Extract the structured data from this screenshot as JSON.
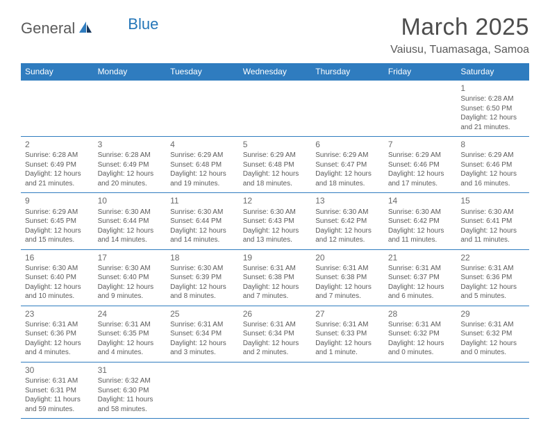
{
  "brand": {
    "text1": "General",
    "text2": "Blue"
  },
  "title": "March 2025",
  "location": "Vaiusu, Tuamasaga, Samoa",
  "colors": {
    "header_bg": "#2f7cbf",
    "header_text": "#ffffff",
    "border": "#2f7cbf",
    "body_text": "#5a5a5a",
    "brand_blue": "#2476b8"
  },
  "weekdays": [
    "Sunday",
    "Monday",
    "Tuesday",
    "Wednesday",
    "Thursday",
    "Friday",
    "Saturday"
  ],
  "weeks": [
    [
      null,
      null,
      null,
      null,
      null,
      null,
      {
        "n": "1",
        "sr": "Sunrise: 6:28 AM",
        "ss": "Sunset: 6:50 PM",
        "d1": "Daylight: 12 hours",
        "d2": "and 21 minutes."
      }
    ],
    [
      {
        "n": "2",
        "sr": "Sunrise: 6:28 AM",
        "ss": "Sunset: 6:49 PM",
        "d1": "Daylight: 12 hours",
        "d2": "and 21 minutes."
      },
      {
        "n": "3",
        "sr": "Sunrise: 6:28 AM",
        "ss": "Sunset: 6:49 PM",
        "d1": "Daylight: 12 hours",
        "d2": "and 20 minutes."
      },
      {
        "n": "4",
        "sr": "Sunrise: 6:29 AM",
        "ss": "Sunset: 6:48 PM",
        "d1": "Daylight: 12 hours",
        "d2": "and 19 minutes."
      },
      {
        "n": "5",
        "sr": "Sunrise: 6:29 AM",
        "ss": "Sunset: 6:48 PM",
        "d1": "Daylight: 12 hours",
        "d2": "and 18 minutes."
      },
      {
        "n": "6",
        "sr": "Sunrise: 6:29 AM",
        "ss": "Sunset: 6:47 PM",
        "d1": "Daylight: 12 hours",
        "d2": "and 18 minutes."
      },
      {
        "n": "7",
        "sr": "Sunrise: 6:29 AM",
        "ss": "Sunset: 6:46 PM",
        "d1": "Daylight: 12 hours",
        "d2": "and 17 minutes."
      },
      {
        "n": "8",
        "sr": "Sunrise: 6:29 AM",
        "ss": "Sunset: 6:46 PM",
        "d1": "Daylight: 12 hours",
        "d2": "and 16 minutes."
      }
    ],
    [
      {
        "n": "9",
        "sr": "Sunrise: 6:29 AM",
        "ss": "Sunset: 6:45 PM",
        "d1": "Daylight: 12 hours",
        "d2": "and 15 minutes."
      },
      {
        "n": "10",
        "sr": "Sunrise: 6:30 AM",
        "ss": "Sunset: 6:44 PM",
        "d1": "Daylight: 12 hours",
        "d2": "and 14 minutes."
      },
      {
        "n": "11",
        "sr": "Sunrise: 6:30 AM",
        "ss": "Sunset: 6:44 PM",
        "d1": "Daylight: 12 hours",
        "d2": "and 14 minutes."
      },
      {
        "n": "12",
        "sr": "Sunrise: 6:30 AM",
        "ss": "Sunset: 6:43 PM",
        "d1": "Daylight: 12 hours",
        "d2": "and 13 minutes."
      },
      {
        "n": "13",
        "sr": "Sunrise: 6:30 AM",
        "ss": "Sunset: 6:42 PM",
        "d1": "Daylight: 12 hours",
        "d2": "and 12 minutes."
      },
      {
        "n": "14",
        "sr": "Sunrise: 6:30 AM",
        "ss": "Sunset: 6:42 PM",
        "d1": "Daylight: 12 hours",
        "d2": "and 11 minutes."
      },
      {
        "n": "15",
        "sr": "Sunrise: 6:30 AM",
        "ss": "Sunset: 6:41 PM",
        "d1": "Daylight: 12 hours",
        "d2": "and 11 minutes."
      }
    ],
    [
      {
        "n": "16",
        "sr": "Sunrise: 6:30 AM",
        "ss": "Sunset: 6:40 PM",
        "d1": "Daylight: 12 hours",
        "d2": "and 10 minutes."
      },
      {
        "n": "17",
        "sr": "Sunrise: 6:30 AM",
        "ss": "Sunset: 6:40 PM",
        "d1": "Daylight: 12 hours",
        "d2": "and 9 minutes."
      },
      {
        "n": "18",
        "sr": "Sunrise: 6:30 AM",
        "ss": "Sunset: 6:39 PM",
        "d1": "Daylight: 12 hours",
        "d2": "and 8 minutes."
      },
      {
        "n": "19",
        "sr": "Sunrise: 6:31 AM",
        "ss": "Sunset: 6:38 PM",
        "d1": "Daylight: 12 hours",
        "d2": "and 7 minutes."
      },
      {
        "n": "20",
        "sr": "Sunrise: 6:31 AM",
        "ss": "Sunset: 6:38 PM",
        "d1": "Daylight: 12 hours",
        "d2": "and 7 minutes."
      },
      {
        "n": "21",
        "sr": "Sunrise: 6:31 AM",
        "ss": "Sunset: 6:37 PM",
        "d1": "Daylight: 12 hours",
        "d2": "and 6 minutes."
      },
      {
        "n": "22",
        "sr": "Sunrise: 6:31 AM",
        "ss": "Sunset: 6:36 PM",
        "d1": "Daylight: 12 hours",
        "d2": "and 5 minutes."
      }
    ],
    [
      {
        "n": "23",
        "sr": "Sunrise: 6:31 AM",
        "ss": "Sunset: 6:36 PM",
        "d1": "Daylight: 12 hours",
        "d2": "and 4 minutes."
      },
      {
        "n": "24",
        "sr": "Sunrise: 6:31 AM",
        "ss": "Sunset: 6:35 PM",
        "d1": "Daylight: 12 hours",
        "d2": "and 4 minutes."
      },
      {
        "n": "25",
        "sr": "Sunrise: 6:31 AM",
        "ss": "Sunset: 6:34 PM",
        "d1": "Daylight: 12 hours",
        "d2": "and 3 minutes."
      },
      {
        "n": "26",
        "sr": "Sunrise: 6:31 AM",
        "ss": "Sunset: 6:34 PM",
        "d1": "Daylight: 12 hours",
        "d2": "and 2 minutes."
      },
      {
        "n": "27",
        "sr": "Sunrise: 6:31 AM",
        "ss": "Sunset: 6:33 PM",
        "d1": "Daylight: 12 hours",
        "d2": "and 1 minute."
      },
      {
        "n": "28",
        "sr": "Sunrise: 6:31 AM",
        "ss": "Sunset: 6:32 PM",
        "d1": "Daylight: 12 hours",
        "d2": "and 0 minutes."
      },
      {
        "n": "29",
        "sr": "Sunrise: 6:31 AM",
        "ss": "Sunset: 6:32 PM",
        "d1": "Daylight: 12 hours",
        "d2": "and 0 minutes."
      }
    ],
    [
      {
        "n": "30",
        "sr": "Sunrise: 6:31 AM",
        "ss": "Sunset: 6:31 PM",
        "d1": "Daylight: 11 hours",
        "d2": "and 59 minutes."
      },
      {
        "n": "31",
        "sr": "Sunrise: 6:32 AM",
        "ss": "Sunset: 6:30 PM",
        "d1": "Daylight: 11 hours",
        "d2": "and 58 minutes."
      },
      null,
      null,
      null,
      null,
      null
    ]
  ]
}
